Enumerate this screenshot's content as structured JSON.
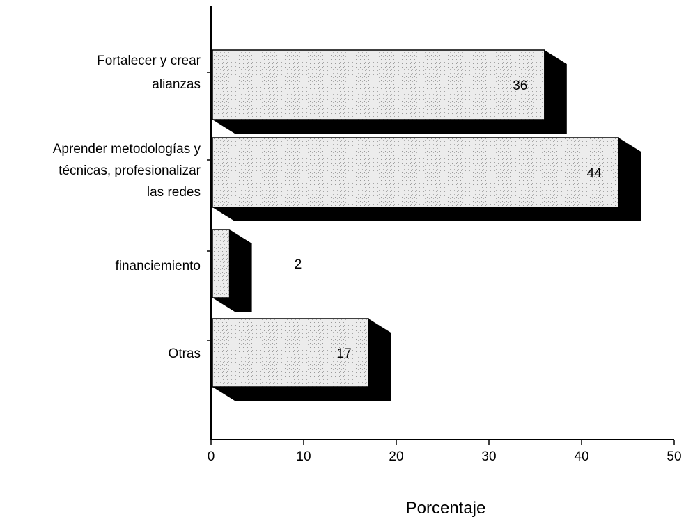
{
  "chart_data": {
    "type": "bar",
    "orientation": "horizontal",
    "categories": [
      [
        "Fortalecer y crear",
        "alianzas"
      ],
      [
        "Aprender metodologías y",
        "técnicas, profesionalizar",
        "las redes"
      ],
      [
        "financiemiento"
      ],
      [
        "Otras"
      ]
    ],
    "values": [
      36,
      44,
      2,
      17
    ],
    "data_labels": [
      "36",
      "44",
      "2",
      "17"
    ],
    "xlabel": "Porcentaje",
    "ylabel": "",
    "title": "",
    "xlim": [
      0,
      50
    ],
    "xticks": [
      "0",
      "10",
      "20",
      "30",
      "40",
      "50"
    ],
    "grid": false,
    "bar_style": "3d-stippled-grey",
    "colors": {
      "bar_face": "#e8e8e8",
      "bar_shadow": "#000000",
      "axis": "#000000"
    }
  }
}
